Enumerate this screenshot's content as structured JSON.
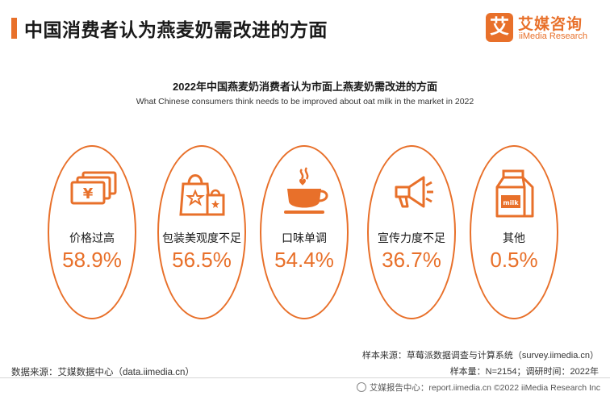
{
  "header": {
    "title": "中国消费者认为燕麦奶需改进的方面",
    "logo_mark": "艾",
    "logo_cn": "艾媒咨询",
    "logo_en": "iiMedia Research"
  },
  "chart_data": {
    "type": "bar",
    "title": "2022年中国燕麦奶消费者认为市面上燕麦奶需改进的方面",
    "subtitle": "What Chinese consumers think needs to be improved about oat milk in the market in 2022",
    "categories": [
      "价格过高",
      "包装美观度不足",
      "口味单调",
      "宣传力度不足",
      "其他"
    ],
    "values": [
      58.9,
      56.5,
      54.4,
      36.7,
      0.5
    ],
    "value_labels": [
      "58.9%",
      "56.5%",
      "54.4%",
      "36.7%",
      "0.5%"
    ],
    "unit": "%",
    "icons": [
      "money-icon",
      "shopping-bag-icon",
      "coffee-cup-icon",
      "megaphone-icon",
      "milk-carton-icon"
    ],
    "accent_color": "#e8702a"
  },
  "notes": {
    "source": "数据来源：艾媒数据中心（data.iimedia.cn）",
    "sample_source": "样本来源：草莓派数据调查与计算系统（survey.iimedia.cn）",
    "sample_size": "样本量：N=2154；调研时间：2022年"
  },
  "footer": {
    "text": "艾媒报告中心：report.iimedia.cn ©2022  iiMedia Research  Inc"
  }
}
